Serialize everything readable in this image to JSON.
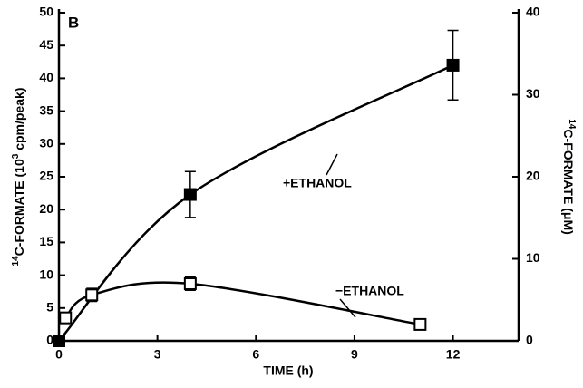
{
  "chart_data": {
    "type": "line",
    "panel_label": "B",
    "x_label": "TIME (h)",
    "y_label_parts": [
      "14",
      "C-FORMATE (10",
      "3",
      " cpm/peak)"
    ],
    "y2_label_parts": [
      "14",
      "C-FORMATE (μM)"
    ],
    "xlim": [
      0,
      14
    ],
    "xticks": [
      0,
      3,
      6,
      9,
      12
    ],
    "ylim": [
      0,
      50
    ],
    "yticks": [
      0,
      5,
      10,
      15,
      20,
      25,
      30,
      35,
      40,
      45,
      50
    ],
    "y2lim": [
      0,
      40
    ],
    "y2ticks": [
      0,
      10,
      20,
      30,
      40
    ],
    "series": [
      {
        "name": "+ETHANOL",
        "color": "#000000",
        "marker": "filled-square",
        "x": [
          0,
          4,
          12
        ],
        "values": [
          0,
          22.3,
          42
        ],
        "errors": [
          null,
          3.5,
          5.3
        ]
      },
      {
        "name": "−ETHANOL",
        "color": "#000000",
        "marker": "open-square",
        "x": [
          0.2,
          1,
          4,
          11
        ],
        "values": [
          3.5,
          7,
          8.7,
          2.5
        ],
        "errors": [
          null,
          1,
          1,
          null
        ]
      }
    ]
  }
}
